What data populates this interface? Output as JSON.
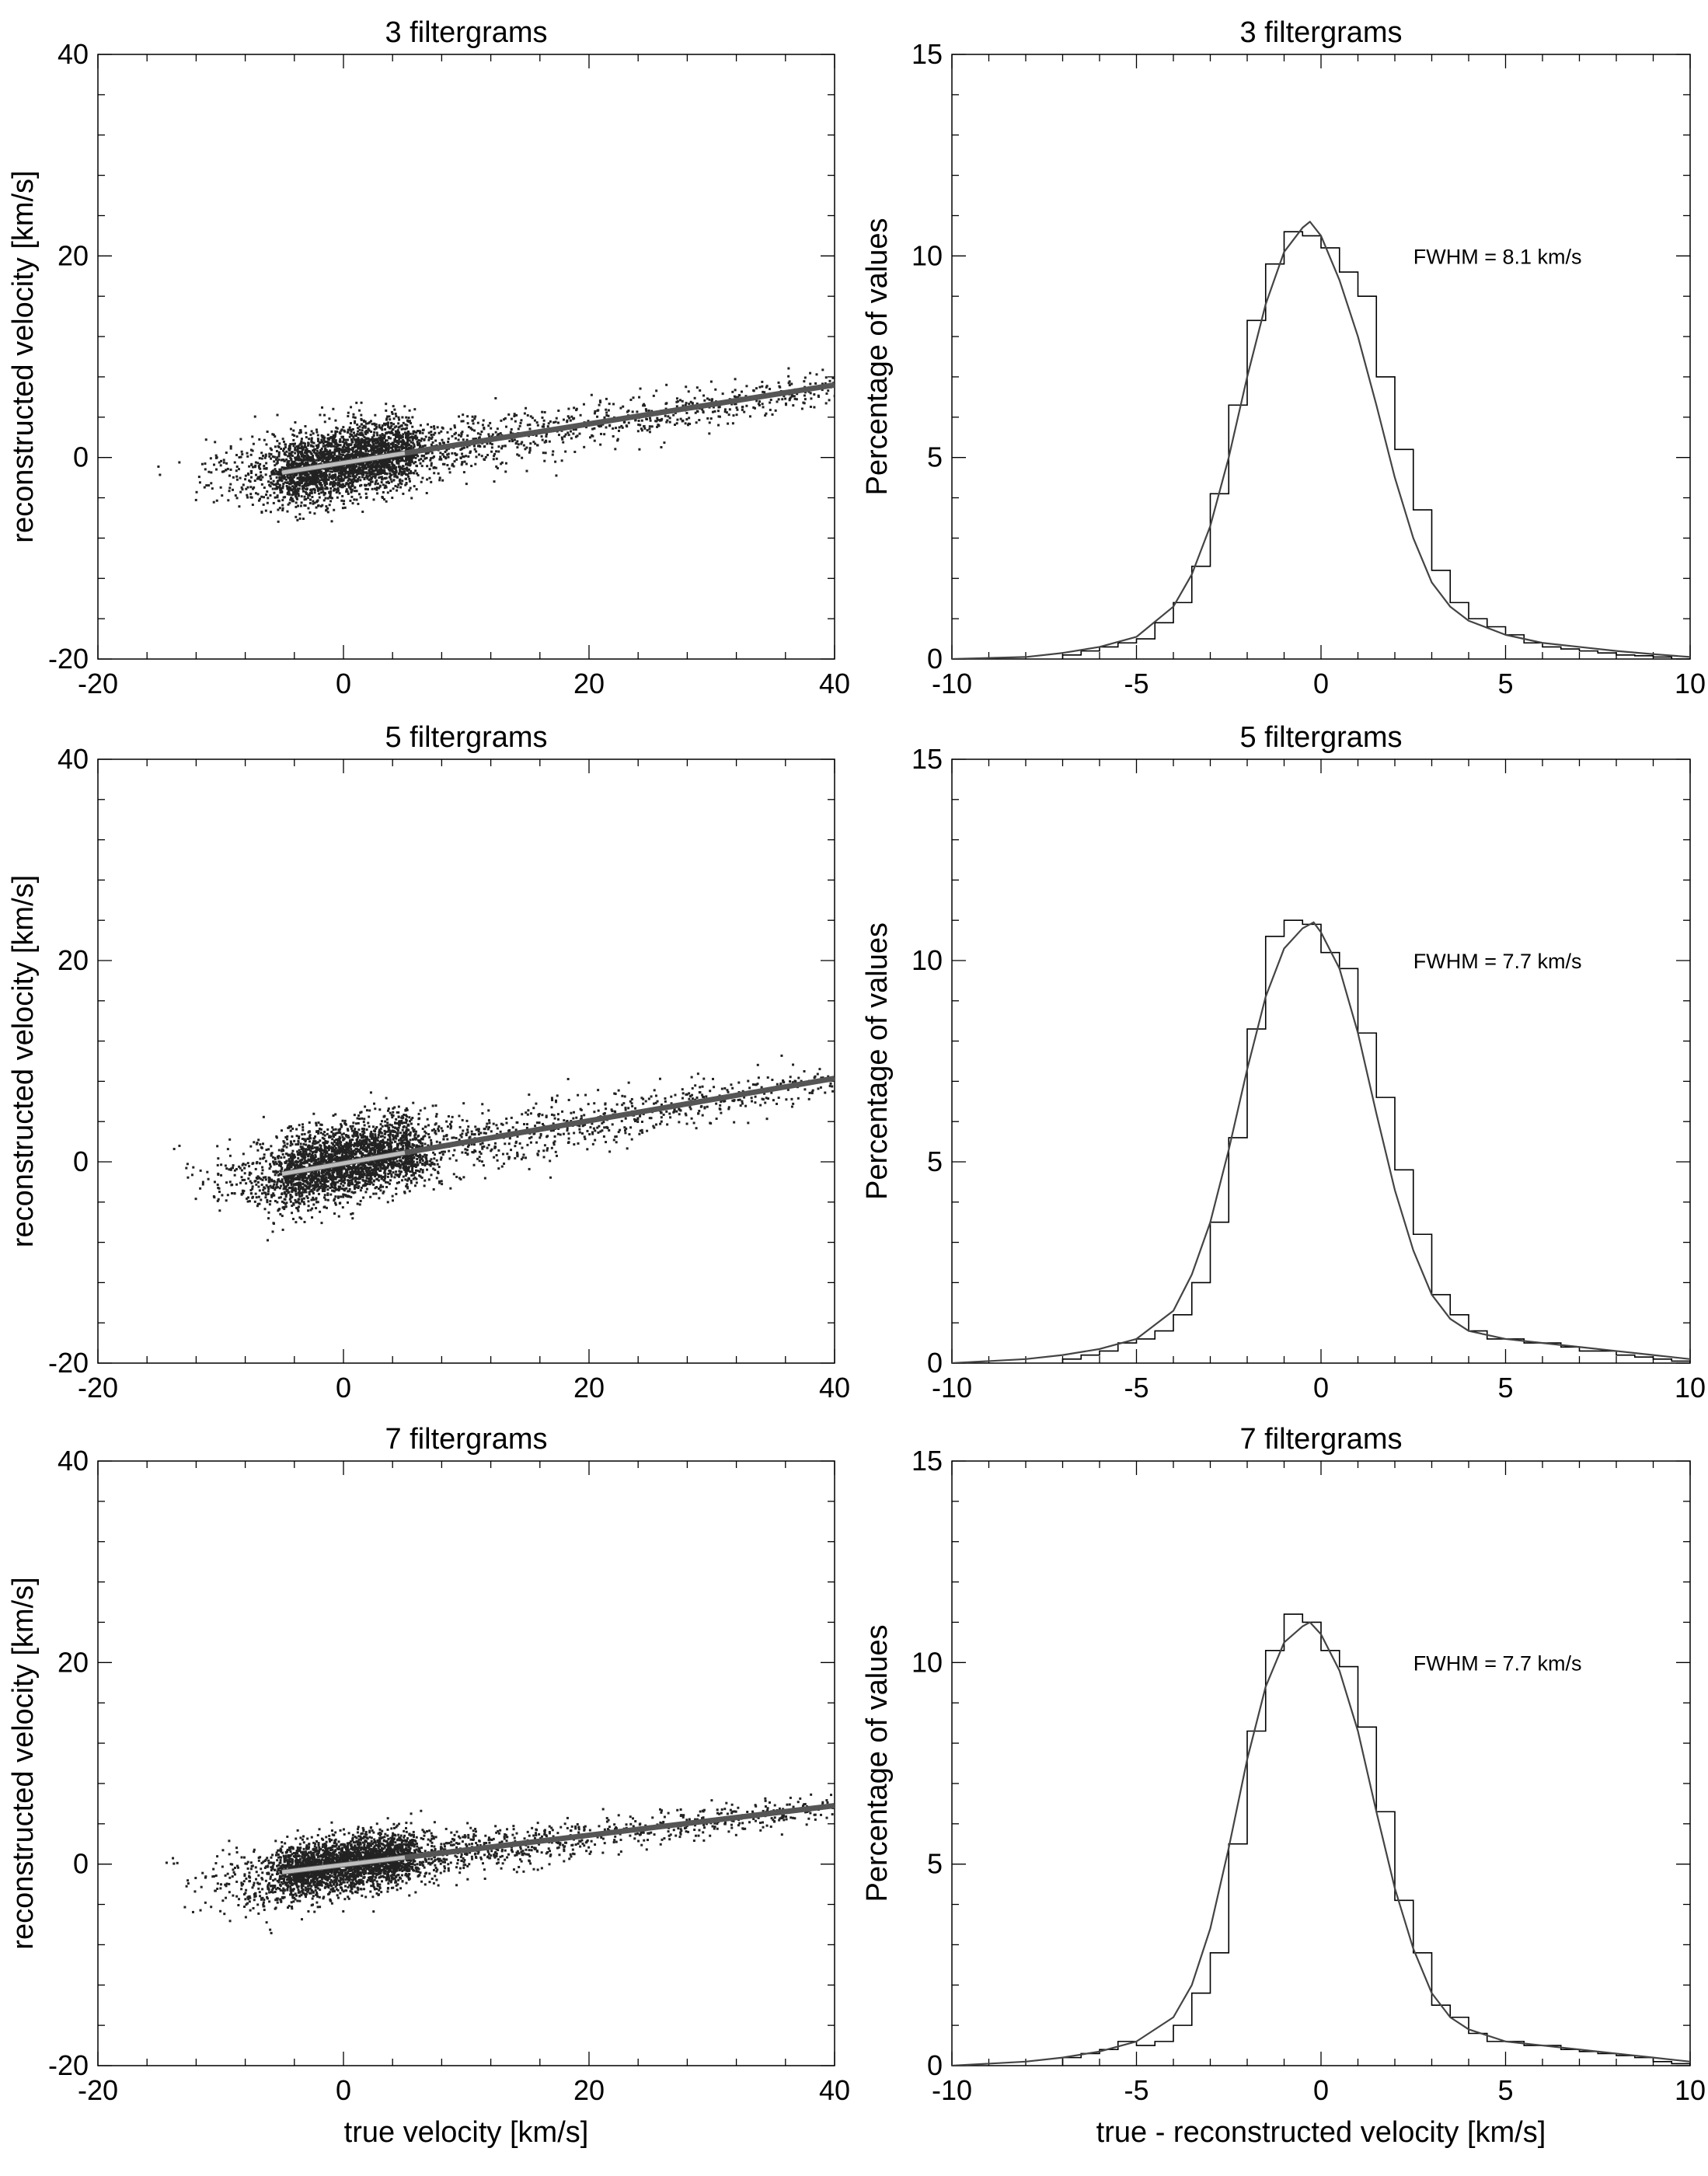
{
  "chart_data": [
    {
      "type": "scatter",
      "title": "3 filtergrams",
      "xlabel": "",
      "ylabel": "reconstructed velocity [km/s]",
      "xlim": [
        -20,
        40
      ],
      "ylim": [
        -20,
        40
      ],
      "xticks": [
        -20,
        0,
        20,
        40
      ],
      "yticks": [
        -20,
        0,
        20,
        40
      ],
      "xtick_labels": [
        "-20",
        "0",
        "20",
        "40"
      ],
      "ytick_labels": [
        "-20",
        "0",
        "20",
        "40"
      ],
      "grid": false,
      "point_color": "#222222",
      "fit_line_color": "#555555",
      "fit_line": {
        "x": [
          -5,
          40
        ],
        "y": [
          -1.5,
          7.2
        ]
      },
      "cloud": {
        "core_x": [
          -5,
          5
        ],
        "core_y_center": [
          -1.5,
          0.8
        ],
        "core_y_spread": 2.3,
        "tail_x": [
          5,
          40
        ],
        "tail_y_spread": 1.6,
        "seed": 11
      }
    },
    {
      "type": "bar",
      "title": "3 filtergrams",
      "xlabel": "",
      "ylabel": "Percentage of values",
      "xlim": [
        -10,
        10
      ],
      "ylim": [
        0,
        15
      ],
      "xticks": [
        -10,
        -5,
        0,
        5,
        10
      ],
      "yticks": [
        0,
        5,
        10,
        15
      ],
      "xtick_labels": [
        "-10",
        "-5",
        "0",
        "5",
        "10"
      ],
      "ytick_labels": [
        "0",
        "5",
        "10",
        "15"
      ],
      "grid": false,
      "annotation": "FWHM = 8.1 km/s",
      "bin_edges": [
        -7,
        -6.5,
        -6,
        -5.5,
        -5,
        -4.5,
        -4,
        -3.5,
        -3,
        -2.5,
        -2,
        -1.5,
        -1,
        -0.5,
        0,
        0.5,
        1,
        1.5,
        2,
        2.5,
        3,
        3.5,
        4,
        4.5,
        5,
        5.5,
        6,
        6.5,
        7,
        7.5,
        8,
        8.5,
        9,
        9.5,
        10
      ],
      "values": [
        0.1,
        0.2,
        0.3,
        0.4,
        0.5,
        0.9,
        1.4,
        2.3,
        4.1,
        6.3,
        8.4,
        9.8,
        10.6,
        10.5,
        10.2,
        9.6,
        9.0,
        7.0,
        5.2,
        3.7,
        2.2,
        1.4,
        1.0,
        0.8,
        0.6,
        0.4,
        0.3,
        0.25,
        0.2,
        0.15,
        0.1,
        0.08,
        0.05,
        0.0
      ],
      "fit": {
        "x": [
          -10,
          -8,
          -7,
          -6,
          -5,
          -4,
          -3.5,
          -3,
          -2.5,
          -2,
          -1.5,
          -1,
          -0.5,
          -0.3,
          0,
          0.5,
          1,
          1.5,
          2,
          2.5,
          3,
          3.5,
          4,
          5,
          6,
          7,
          8,
          9,
          10
        ],
        "y": [
          0,
          0.05,
          0.15,
          0.3,
          0.55,
          1.3,
          2.1,
          3.3,
          5.0,
          7.0,
          8.8,
          10.1,
          10.7,
          10.85,
          10.5,
          9.4,
          8.0,
          6.3,
          4.5,
          3.0,
          1.9,
          1.3,
          0.95,
          0.6,
          0.4,
          0.3,
          0.2,
          0.12,
          0.05
        ]
      }
    },
    {
      "type": "scatter",
      "title": "5 filtergrams",
      "xlabel": "",
      "ylabel": "reconstructed velocity [km/s]",
      "xlim": [
        -20,
        40
      ],
      "ylim": [
        -20,
        40
      ],
      "xticks": [
        -20,
        0,
        20,
        40
      ],
      "yticks": [
        -20,
        0,
        20,
        40
      ],
      "xtick_labels": [
        "-20",
        "0",
        "20",
        "40"
      ],
      "ytick_labels": [
        "-20",
        "0",
        "20",
        "40"
      ],
      "grid": false,
      "point_color": "#222222",
      "fit_line_color": "#555555",
      "fit_line": {
        "x": [
          -5,
          40
        ],
        "y": [
          -1.2,
          8.3
        ]
      },
      "cloud": {
        "core_x": [
          -5,
          5
        ],
        "core_y_center": [
          -1.2,
          1.3
        ],
        "core_y_spread": 2.4,
        "tail_x": [
          5,
          40
        ],
        "tail_y_spread": 1.8,
        "seed": 23
      }
    },
    {
      "type": "bar",
      "title": "5 filtergrams",
      "xlabel": "",
      "ylabel": "Percentage of values",
      "xlim": [
        -10,
        10
      ],
      "ylim": [
        0,
        15
      ],
      "xticks": [
        -10,
        -5,
        0,
        5,
        10
      ],
      "yticks": [
        0,
        5,
        10,
        15
      ],
      "xtick_labels": [
        "-10",
        "-5",
        "0",
        "5",
        "10"
      ],
      "ytick_labels": [
        "0",
        "5",
        "10",
        "15"
      ],
      "grid": false,
      "annotation": "FWHM = 7.7 km/s",
      "bin_edges": [
        -7,
        -6.5,
        -6,
        -5.5,
        -5,
        -4.5,
        -4,
        -3.5,
        -3,
        -2.5,
        -2,
        -1.5,
        -1,
        -0.5,
        0,
        0.5,
        1,
        1.5,
        2,
        2.5,
        3,
        3.5,
        4,
        4.5,
        5,
        5.5,
        6,
        6.5,
        7,
        7.5,
        8,
        8.5,
        9,
        9.5,
        10
      ],
      "values": [
        0.1,
        0.2,
        0.3,
        0.5,
        0.6,
        0.8,
        1.2,
        2.0,
        3.5,
        5.6,
        8.3,
        10.6,
        11.0,
        10.9,
        10.2,
        9.8,
        8.2,
        6.6,
        4.8,
        3.2,
        1.7,
        1.2,
        0.8,
        0.6,
        0.6,
        0.5,
        0.5,
        0.4,
        0.3,
        0.3,
        0.2,
        0.15,
        0.1,
        0.05
      ],
      "fit": {
        "x": [
          -10,
          -8,
          -7,
          -6,
          -5,
          -4,
          -3.5,
          -3,
          -2.5,
          -2,
          -1.5,
          -1,
          -0.5,
          -0.2,
          0,
          0.5,
          1,
          1.5,
          2,
          2.5,
          3,
          3.5,
          4,
          5,
          6,
          7,
          8,
          9,
          10
        ],
        "y": [
          0,
          0.1,
          0.2,
          0.35,
          0.6,
          1.3,
          2.2,
          3.5,
          5.3,
          7.3,
          9.1,
          10.3,
          10.8,
          10.95,
          10.7,
          9.8,
          8.2,
          6.2,
          4.3,
          2.8,
          1.7,
          1.1,
          0.8,
          0.6,
          0.5,
          0.4,
          0.3,
          0.2,
          0.1
        ]
      }
    },
    {
      "type": "scatter",
      "title": "7 filtergrams",
      "xlabel": "true velocity [km/s]",
      "ylabel": "reconstructed velocity [km/s]",
      "xlim": [
        -20,
        40
      ],
      "ylim": [
        -20,
        40
      ],
      "xticks": [
        -20,
        0,
        20,
        40
      ],
      "yticks": [
        -20,
        0,
        20,
        40
      ],
      "xtick_labels": [
        "-20",
        "0",
        "20",
        "40"
      ],
      "ytick_labels": [
        "-20",
        "0",
        "20",
        "40"
      ],
      "grid": false,
      "point_color": "#222222",
      "fit_line_color": "#555555",
      "fit_line": {
        "x": [
          -5,
          40
        ],
        "y": [
          -0.8,
          5.8
        ]
      },
      "cloud": {
        "core_x": [
          -5,
          5
        ],
        "core_y_center": [
          -0.8,
          0.8
        ],
        "core_y_spread": 1.8,
        "tail_x": [
          5,
          40
        ],
        "tail_y_spread": 1.3,
        "seed": 37
      }
    },
    {
      "type": "bar",
      "title": "7 filtergrams",
      "xlabel": "true - reconstructed velocity [km/s]",
      "ylabel": "Percentage of values",
      "xlim": [
        -10,
        10
      ],
      "ylim": [
        0,
        15
      ],
      "xticks": [
        -10,
        -5,
        0,
        5,
        10
      ],
      "yticks": [
        0,
        5,
        10,
        15
      ],
      "xtick_labels": [
        "-10",
        "-5",
        "0",
        "5",
        "10"
      ],
      "ytick_labels": [
        "0",
        "5",
        "10",
        "15"
      ],
      "grid": false,
      "annotation": "FWHM = 7.7 km/s",
      "bin_edges": [
        -7,
        -6.5,
        -6,
        -5.5,
        -5,
        -4.5,
        -4,
        -3.5,
        -3,
        -2.5,
        -2,
        -1.5,
        -1,
        -0.5,
        0,
        0.5,
        1,
        1.5,
        2,
        2.5,
        3,
        3.5,
        4,
        4.5,
        5,
        5.5,
        6,
        6.5,
        7,
        7.5,
        8,
        8.5,
        9,
        9.5,
        10
      ],
      "values": [
        0.2,
        0.3,
        0.4,
        0.6,
        0.5,
        0.6,
        1.0,
        1.8,
        2.8,
        5.5,
        8.3,
        10.3,
        11.2,
        11.0,
        10.3,
        9.9,
        8.4,
        6.3,
        4.1,
        2.8,
        1.5,
        1.2,
        0.8,
        0.6,
        0.6,
        0.5,
        0.5,
        0.4,
        0.35,
        0.3,
        0.25,
        0.2,
        0.1,
        0.05
      ],
      "fit": {
        "x": [
          -10,
          -8,
          -7,
          -6,
          -5,
          -4,
          -3.5,
          -3,
          -2.5,
          -2,
          -1.5,
          -1,
          -0.5,
          -0.3,
          0,
          0.5,
          1,
          1.5,
          2,
          2.5,
          3,
          3.5,
          4,
          5,
          6,
          7,
          8,
          9,
          10
        ],
        "y": [
          0,
          0.1,
          0.2,
          0.35,
          0.6,
          1.2,
          2.0,
          3.4,
          5.4,
          7.6,
          9.4,
          10.5,
          10.9,
          11.0,
          10.7,
          9.8,
          8.3,
          6.3,
          4.4,
          2.9,
          1.8,
          1.2,
          0.9,
          0.6,
          0.5,
          0.4,
          0.3,
          0.2,
          0.1
        ]
      }
    }
  ]
}
